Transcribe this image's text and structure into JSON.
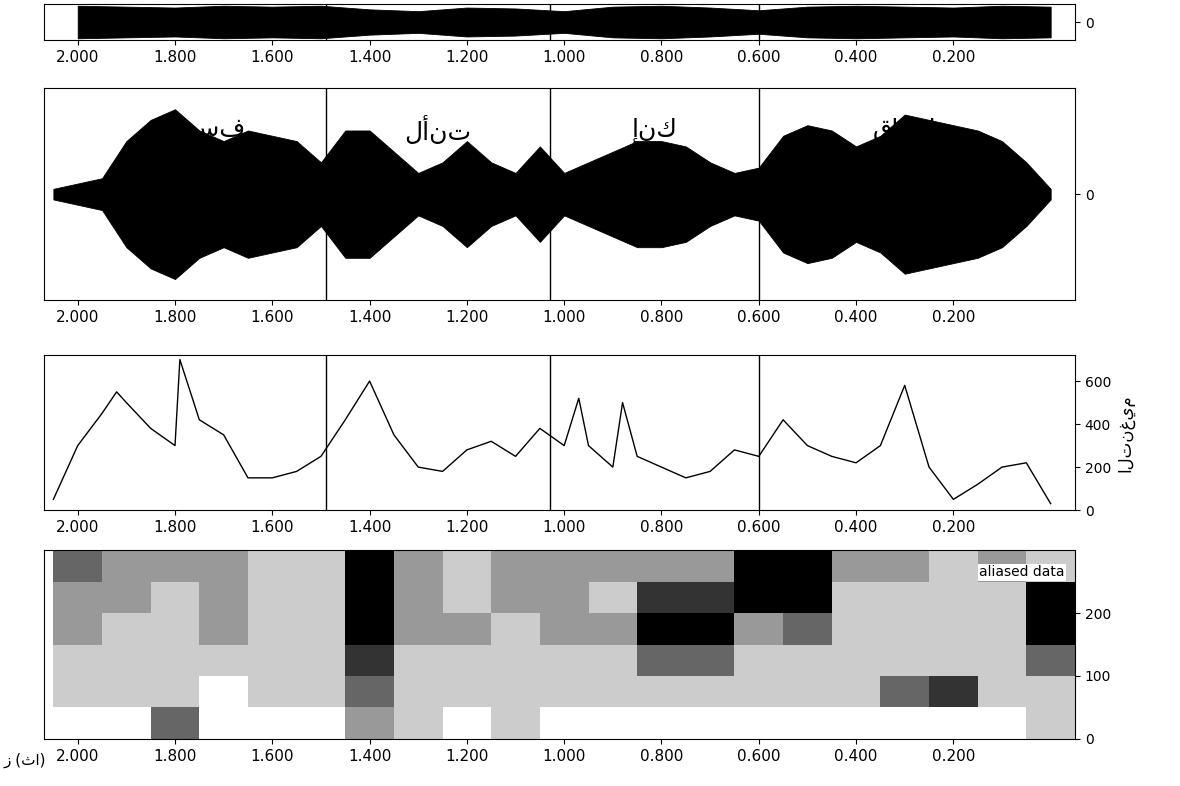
{
  "chart_data": [
    {
      "type": "envelope",
      "x": [
        2.0,
        1.9,
        1.8,
        1.7,
        1.6,
        1.5,
        1.4,
        1.3,
        1.2,
        1.1,
        1.0,
        0.9,
        0.8,
        0.7,
        0.6,
        0.5,
        0.4,
        0.3,
        0.2,
        0.1,
        0.0
      ],
      "values": [
        0.9,
        0.85,
        0.8,
        0.9,
        0.85,
        0.9,
        0.7,
        0.6,
        0.8,
        0.75,
        0.6,
        0.85,
        0.9,
        0.8,
        0.65,
        0.85,
        0.9,
        0.85,
        0.8,
        0.9,
        0.85
      ],
      "color": "#000000",
      "xlim": [
        2.07,
        -0.05
      ],
      "xticks": [
        {
          "value": 2.0,
          "label": "2.000"
        },
        {
          "value": 1.8,
          "label": "1.800"
        },
        {
          "value": 1.6,
          "label": "1.600"
        },
        {
          "value": 1.4,
          "label": "1.400"
        },
        {
          "value": 1.2,
          "label": "1.200"
        },
        {
          "value": 1.0,
          "label": "1.000"
        },
        {
          "value": 0.8,
          "label": "0.800"
        },
        {
          "value": 0.6,
          "label": "0.600"
        },
        {
          "value": 0.4,
          "label": "0.400"
        },
        {
          "value": 0.2,
          "label": "0.200"
        }
      ],
      "ylim": [
        -1,
        1
      ],
      "yticks": [
        0
      ],
      "boundaries": [
        1.49,
        1.03,
        0.6
      ]
    },
    {
      "type": "envelope",
      "x": [
        2.05,
        2.0,
        1.95,
        1.9,
        1.85,
        1.8,
        1.75,
        1.7,
        1.65,
        1.6,
        1.55,
        1.5,
        1.45,
        1.4,
        1.35,
        1.3,
        1.25,
        1.2,
        1.15,
        1.1,
        1.05,
        1.0,
        0.95,
        0.9,
        0.85,
        0.8,
        0.75,
        0.7,
        0.65,
        0.6,
        0.55,
        0.5,
        0.45,
        0.4,
        0.35,
        0.3,
        0.25,
        0.2,
        0.15,
        0.1,
        0.05,
        0.0
      ],
      "values": [
        0.05,
        0.1,
        0.15,
        0.5,
        0.7,
        0.8,
        0.6,
        0.5,
        0.6,
        0.55,
        0.5,
        0.3,
        0.6,
        0.6,
        0.4,
        0.2,
        0.3,
        0.5,
        0.3,
        0.2,
        0.45,
        0.2,
        0.3,
        0.4,
        0.5,
        0.5,
        0.45,
        0.3,
        0.2,
        0.25,
        0.55,
        0.65,
        0.6,
        0.45,
        0.55,
        0.75,
        0.7,
        0.65,
        0.6,
        0.5,
        0.3,
        0.05
      ],
      "color": "#000000",
      "xlim": [
        2.07,
        -0.05
      ],
      "xticks": [
        {
          "value": 2.0,
          "label": "2.000"
        },
        {
          "value": 1.8,
          "label": "1.800"
        },
        {
          "value": 1.6,
          "label": "1.600"
        },
        {
          "value": 1.4,
          "label": "1.400"
        },
        {
          "value": 1.2,
          "label": "1.200"
        },
        {
          "value": 1.0,
          "label": "1.000"
        },
        {
          "value": 0.8,
          "label": "0.800"
        },
        {
          "value": 0.6,
          "label": "0.600"
        },
        {
          "value": 0.4,
          "label": "0.400"
        },
        {
          "value": 0.2,
          "label": "0.200"
        }
      ],
      "ylim": [
        -1,
        1
      ],
      "yticks": [
        0
      ],
      "boundaries": [
        1.49,
        1.03,
        0.6
      ],
      "words": [
        {
          "text": "يوسف",
          "start": 2.0,
          "end": 1.49
        },
        {
          "text": "لأنت",
          "start": 1.49,
          "end": 1.03
        },
        {
          "text": "إنك",
          "start": 1.03,
          "end": 0.6
        },
        {
          "text": "قالوا",
          "start": 0.6,
          "end": 0.0
        }
      ]
    },
    {
      "type": "line",
      "x": [
        2.05,
        2.0,
        1.95,
        1.92,
        1.9,
        1.85,
        1.8,
        1.79,
        1.75,
        1.7,
        1.65,
        1.6,
        1.55,
        1.5,
        1.45,
        1.4,
        1.35,
        1.3,
        1.25,
        1.2,
        1.15,
        1.1,
        1.05,
        1.0,
        0.97,
        0.95,
        0.9,
        0.88,
        0.85,
        0.8,
        0.75,
        0.7,
        0.65,
        0.6,
        0.55,
        0.5,
        0.45,
        0.4,
        0.35,
        0.3,
        0.25,
        0.2,
        0.15,
        0.1,
        0.05,
        0.0
      ],
      "values": [
        50,
        300,
        450,
        550,
        500,
        380,
        300,
        700,
        420,
        350,
        150,
        150,
        180,
        250,
        420,
        600,
        350,
        200,
        180,
        280,
        320,
        250,
        380,
        300,
        520,
        300,
        200,
        500,
        250,
        200,
        150,
        180,
        280,
        250,
        420,
        300,
        250,
        220,
        300,
        580,
        200,
        50,
        120,
        200,
        220,
        30
      ],
      "color": "#000000",
      "ylabel": "التنغيم",
      "xlim": [
        2.07,
        -0.05
      ],
      "xticks": [
        {
          "value": 2.0,
          "label": "2.000"
        },
        {
          "value": 1.8,
          "label": "1.800"
        },
        {
          "value": 1.6,
          "label": "1.600"
        },
        {
          "value": 1.4,
          "label": "1.400"
        },
        {
          "value": 1.2,
          "label": "1.200"
        },
        {
          "value": 1.0,
          "label": "1.000"
        },
        {
          "value": 0.8,
          "label": "0.800"
        },
        {
          "value": 0.6,
          "label": "0.600"
        },
        {
          "value": 0.4,
          "label": "0.400"
        },
        {
          "value": 0.2,
          "label": "0.200"
        }
      ],
      "ylim": [
        0,
        720
      ],
      "yticks": [
        0,
        200,
        400,
        600
      ],
      "boundaries": [
        1.49,
        1.03,
        0.6
      ]
    },
    {
      "type": "heatmap",
      "x_edges": [
        2.05,
        1.95,
        1.85,
        1.75,
        1.65,
        1.55,
        1.45,
        1.35,
        1.25,
        1.15,
        1.05,
        0.95,
        0.85,
        0.75,
        0.65,
        0.55,
        0.45,
        0.35,
        0.25,
        0.15,
        0.05,
        -0.05
      ],
      "y_edges": [
        0,
        50,
        100,
        150,
        200,
        250,
        300
      ],
      "cells": [
        [
          0.3,
          0.3,
          0.6,
          0.3,
          0.3,
          0.3,
          0.5,
          0.4,
          0.3,
          0.4,
          0.3,
          0.3,
          0.3,
          0.3,
          0.3,
          0.3,
          0.3,
          0.3,
          0.3,
          0.3,
          0.4
        ],
        [
          0.4,
          0.4,
          0.4,
          0.3,
          0.4,
          0.4,
          0.6,
          0.4,
          0.4,
          0.4,
          0.4,
          0.4,
          0.4,
          0.4,
          0.4,
          0.4,
          0.4,
          0.6,
          0.7,
          0.4,
          0.4
        ],
        [
          0.4,
          0.4,
          0.4,
          0.4,
          0.4,
          0.4,
          0.7,
          0.4,
          0.4,
          0.4,
          0.4,
          0.4,
          0.6,
          0.6,
          0.4,
          0.4,
          0.4,
          0.4,
          0.4,
          0.4,
          0.6
        ],
        [
          0.5,
          0.4,
          0.4,
          0.5,
          0.4,
          0.4,
          0.8,
          0.5,
          0.5,
          0.4,
          0.5,
          0.5,
          0.8,
          0.8,
          0.5,
          0.6,
          0.4,
          0.4,
          0.4,
          0.4,
          0.8
        ],
        [
          0.5,
          0.5,
          0.4,
          0.5,
          0.4,
          0.4,
          0.8,
          0.5,
          0.4,
          0.5,
          0.5,
          0.4,
          0.7,
          0.7,
          0.8,
          0.8,
          0.4,
          0.4,
          0.4,
          0.4,
          0.8
        ],
        [
          0.6,
          0.5,
          0.5,
          0.5,
          0.4,
          0.4,
          0.8,
          0.5,
          0.4,
          0.5,
          0.5,
          0.5,
          0.5,
          0.5,
          0.8,
          0.8,
          0.5,
          0.5,
          0.4,
          0.5,
          0.4
        ]
      ],
      "xlabel": "ز (ثا)",
      "annotation": "aliased data",
      "xlim": [
        2.07,
        -0.05
      ],
      "xticks": [
        {
          "value": 2.0,
          "label": "2.000"
        },
        {
          "value": 1.8,
          "label": "1.800"
        },
        {
          "value": 1.6,
          "label": "1.600"
        },
        {
          "value": 1.4,
          "label": "1.400"
        },
        {
          "value": 1.2,
          "label": "1.200"
        },
        {
          "value": 1.0,
          "label": "1.000"
        },
        {
          "value": 0.8,
          "label": "0.800"
        },
        {
          "value": 0.6,
          "label": "0.600"
        },
        {
          "value": 0.4,
          "label": "0.400"
        },
        {
          "value": 0.2,
          "label": "0.200"
        }
      ],
      "ylim": [
        0,
        300
      ],
      "yticks": [
        0,
        100,
        200
      ]
    }
  ]
}
